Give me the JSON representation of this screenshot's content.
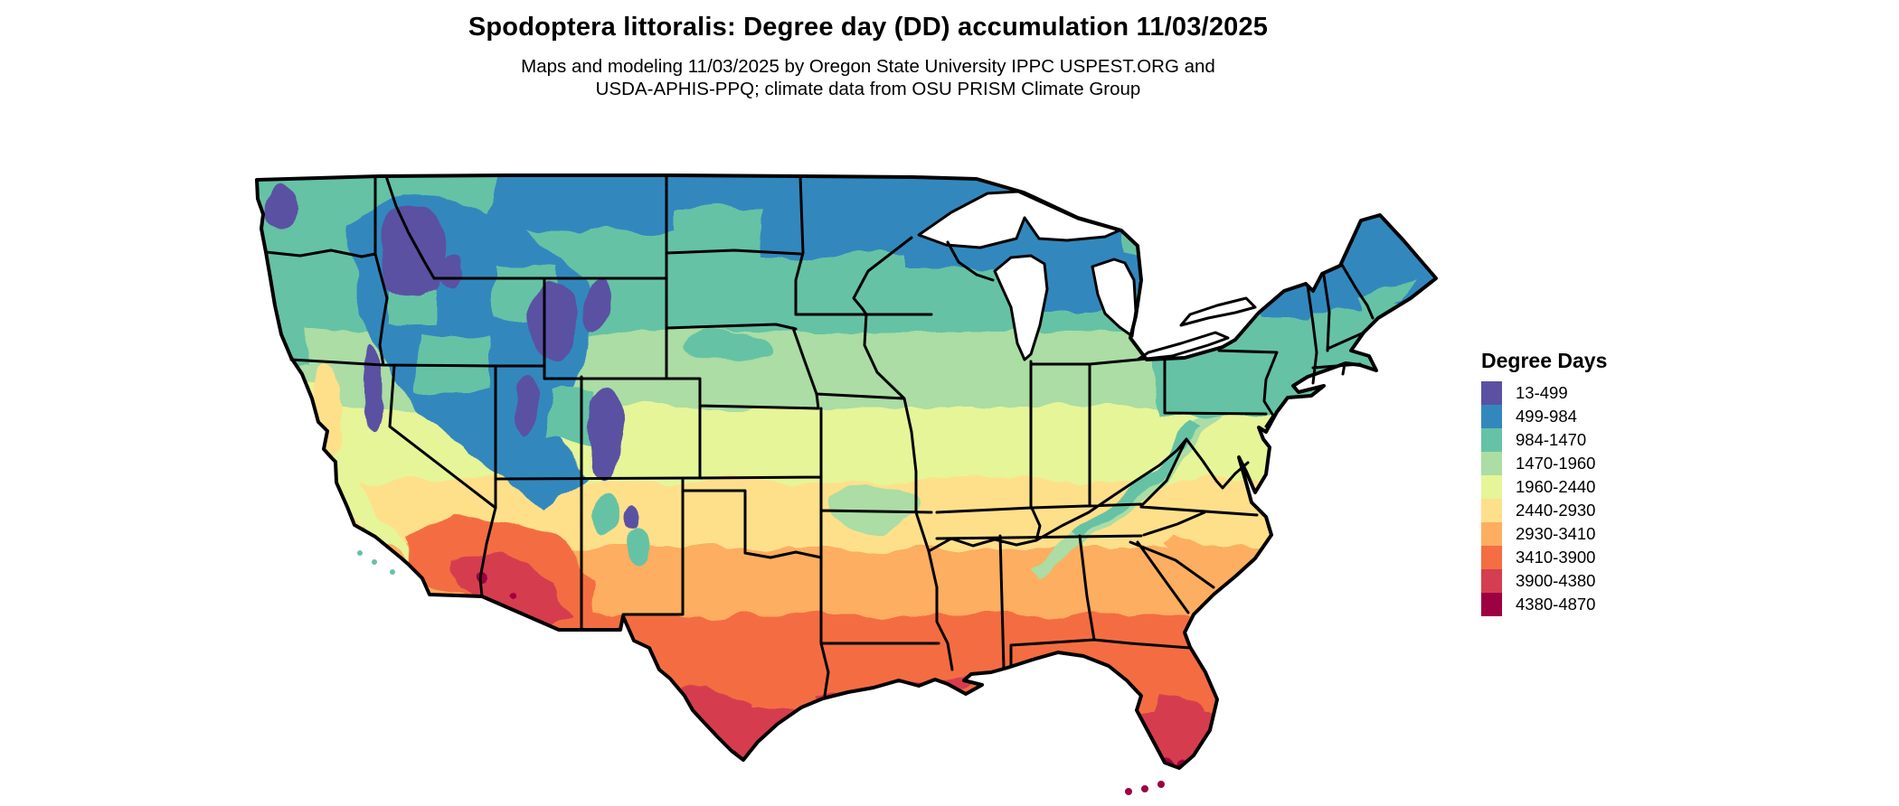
{
  "header": {
    "title": "Spodoptera littoralis: Degree day (DD) accumulation 11/03/2025",
    "subtitle_line1": "Maps and modeling 11/03/2025 by Oregon State University IPPC USPEST.ORG and",
    "subtitle_line2": "USDA-APHIS-PPQ; climate data from OSU PRISM Climate Group"
  },
  "legend": {
    "title": "Degree Days",
    "items": [
      {
        "label": "13-499",
        "color": "#5a51a3"
      },
      {
        "label": "499-984",
        "color": "#3288bd"
      },
      {
        "label": "984-1470",
        "color": "#66c2a5"
      },
      {
        "label": "1470-1960",
        "color": "#abdda4"
      },
      {
        "label": "1960-2440",
        "color": "#e6f598"
      },
      {
        "label": "2440-2930",
        "color": "#fee08b"
      },
      {
        "label": "2930-3410",
        "color": "#fdae61"
      },
      {
        "label": "3410-3900",
        "color": "#f46d43"
      },
      {
        "label": "3900-4380",
        "color": "#d53e4f"
      },
      {
        "label": "4380-4870",
        "color": "#9e0142"
      }
    ]
  },
  "map": {
    "region": "Contiguous United States",
    "outline_color": "#000000",
    "water_color": "#ffffff",
    "pattern": {
      "northern_tier_and_new_england": "499-1470",
      "mountain_west_high_elevations": "13-984",
      "central_plains_and_midwest": "1470-2440",
      "california_central_valley": "1960-2930",
      "desert_southwest": "3410-4870",
      "gulf_coast_and_deep_south": "2930-3900",
      "south_texas_and_south_florida": "3900-4870"
    }
  }
}
